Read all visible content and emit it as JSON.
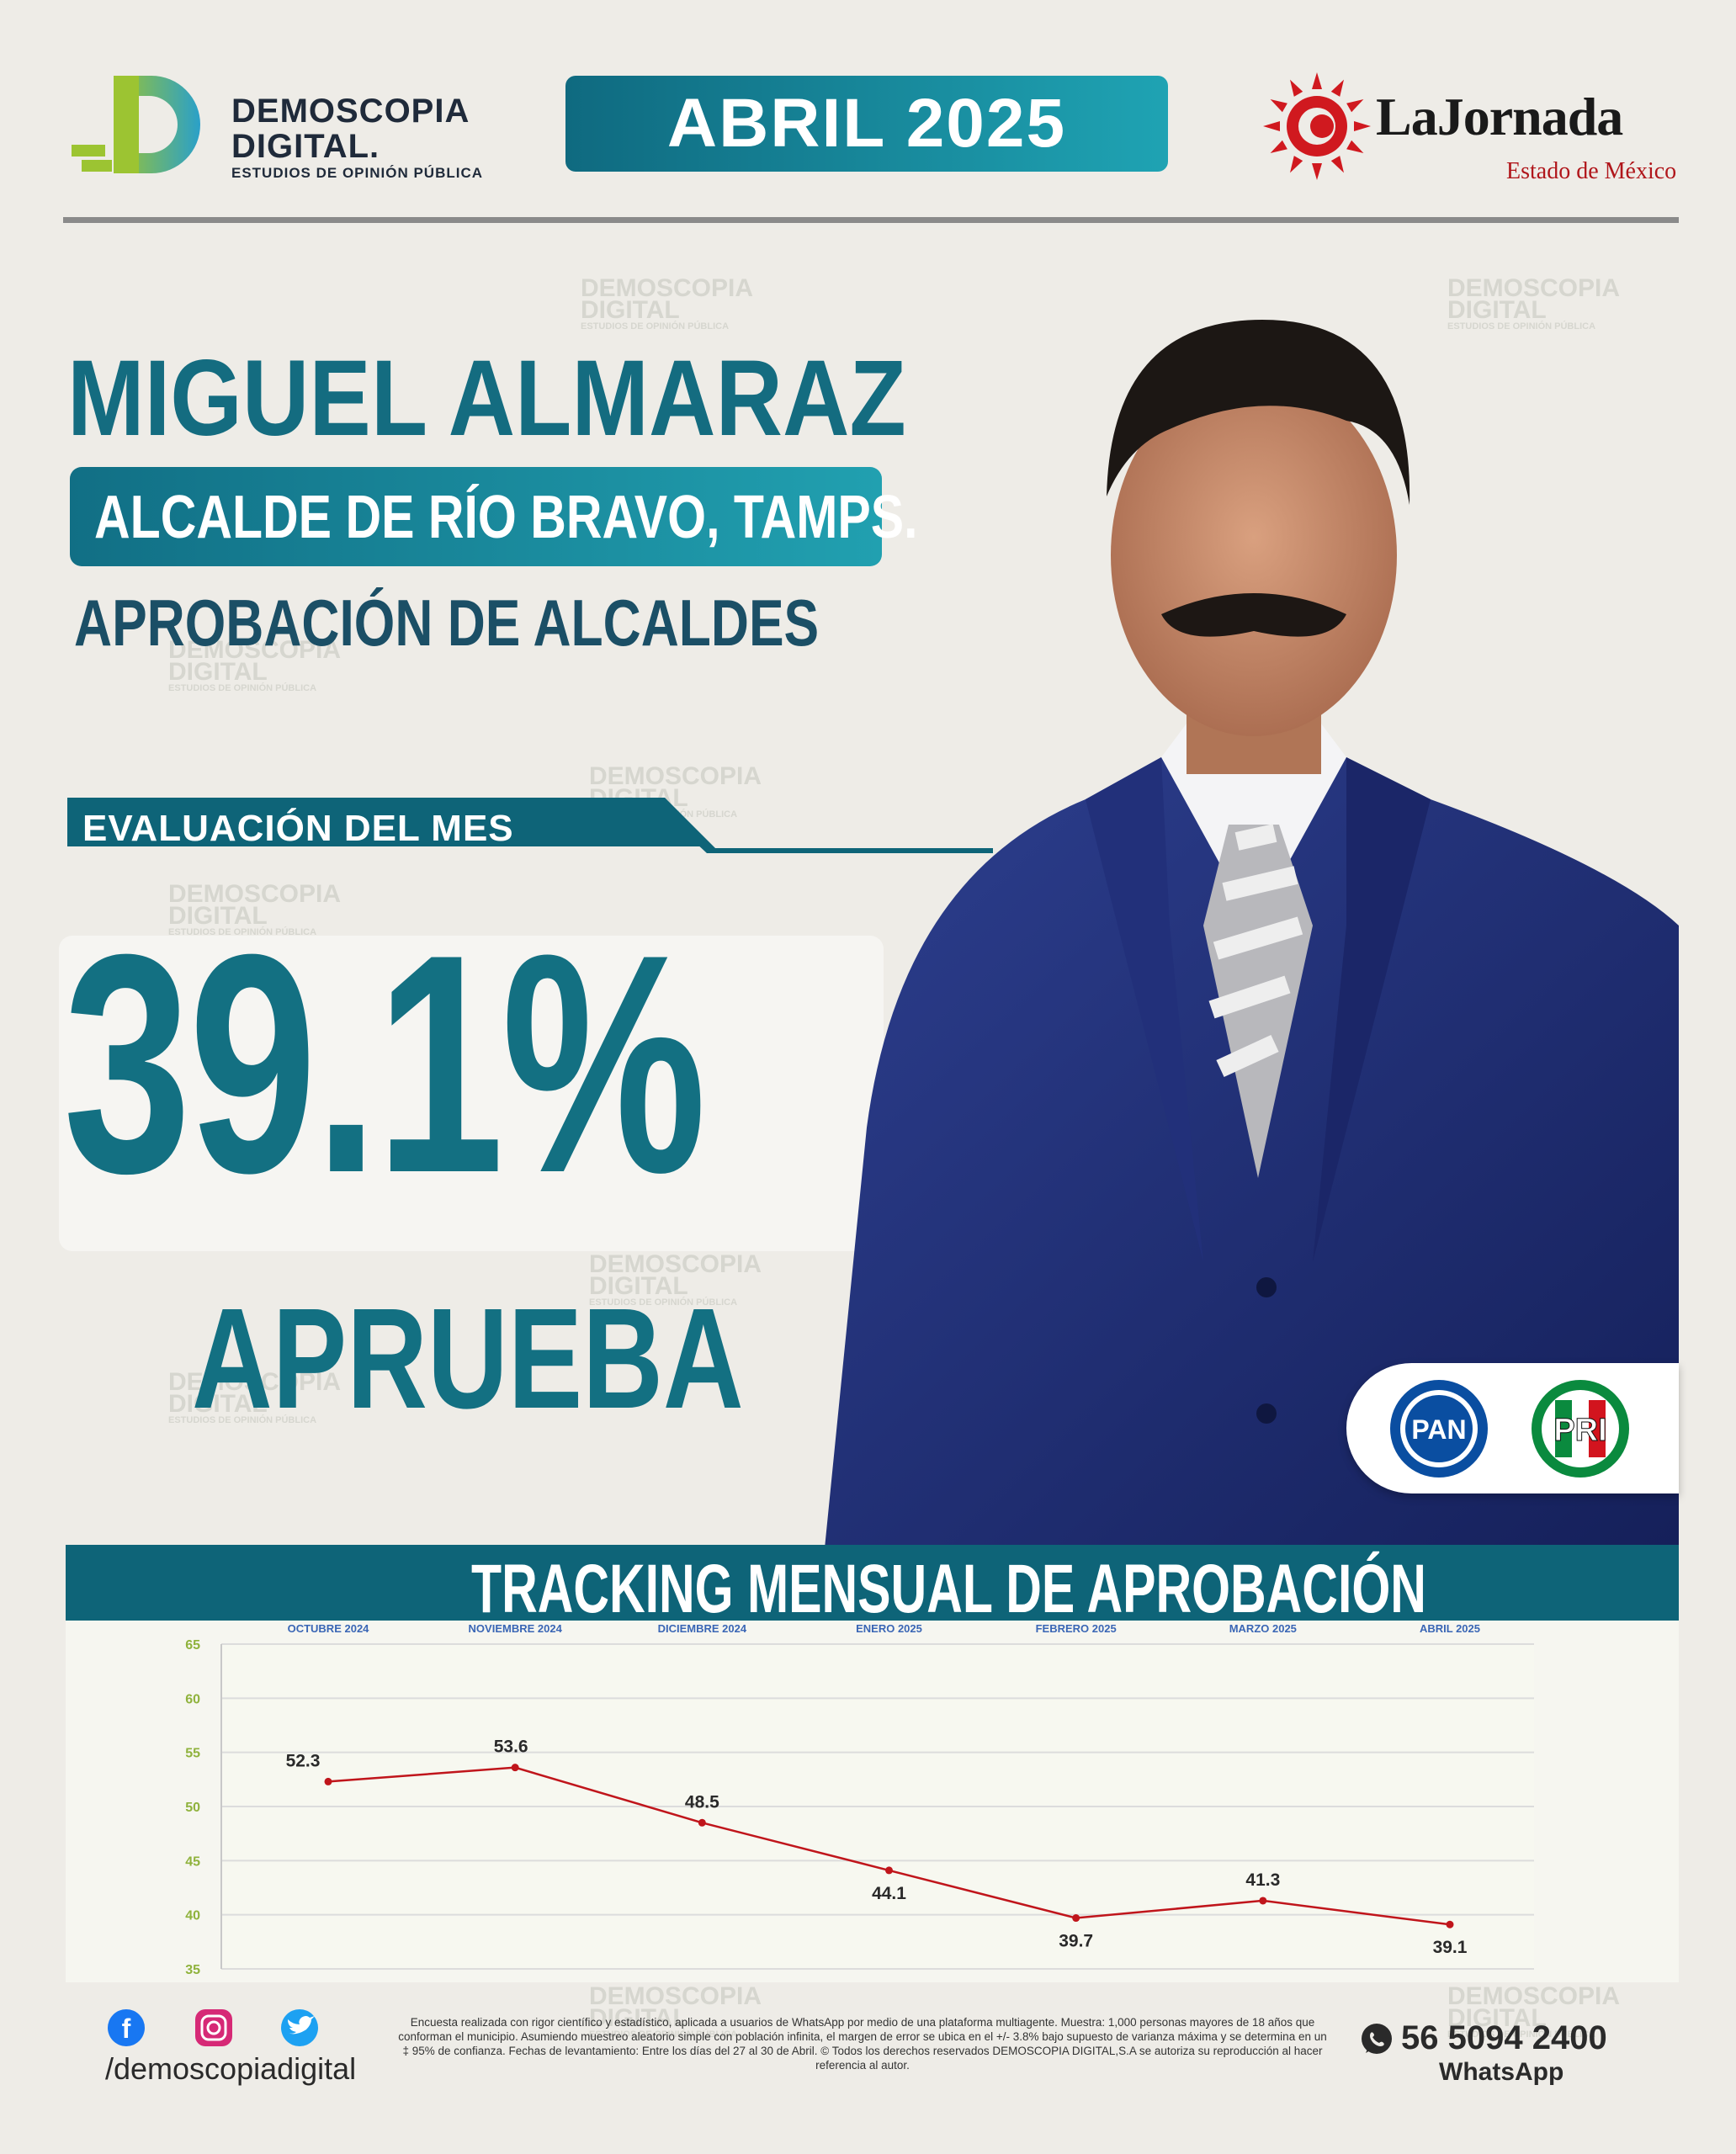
{
  "header": {
    "logo_line1": "DEMOSCOPIA",
    "logo_line2": "DIGITAL.",
    "logo_tagline": "ESTUDIOS DE OPINIÓN PÚBLICA",
    "month": "ABRIL 2025",
    "partner_brand": "LaJornada",
    "partner_sub": "Estado de México"
  },
  "profile": {
    "name": "MIGUEL ALMARAZ",
    "role": "ALCALDE DE RÍO BRAVO, TAMPS.",
    "survey": "APROBACIÓN DE ALCALDES",
    "eval_label": "EVALUACIÓN DEL MES",
    "value": "39.1%",
    "value_label": "APRUEBA",
    "parties": [
      "PAN",
      "PRI"
    ]
  },
  "chart_data": {
    "type": "line",
    "title": "TRACKING MENSUAL DE APROBACIÓN",
    "categories": [
      "OCTUBRE 2024",
      "NOVIEMBRE 2024",
      "DICIEMBRE 2024",
      "ENERO 2025",
      "FEBRERO 2025",
      "MARZO 2025",
      "ABRIL 2025"
    ],
    "series": [
      {
        "values": [
          52.3,
          53.6,
          48.5,
          44.1,
          39.7,
          41.3,
          39.1
        ]
      }
    ],
    "yticks": [
      35,
      40,
      45,
      50,
      55,
      60,
      65
    ],
    "ylim": [
      35,
      65
    ],
    "grid": true,
    "line_color": "#c0151b"
  },
  "footer": {
    "social_handle": "/demoscopiadigital",
    "social_icons": [
      "facebook-icon",
      "instagram-icon",
      "twitter-icon"
    ],
    "disclaimer": "Encuesta realizada con rigor científico y estadístico, aplicada a usuarios de WhatsApp por medio de una plataforma multiagente. Muestra: 1,000 personas mayores de 18 años que conforman el municipio. Asumiendo muestreo aleatorio simple con población infinita, el margen de error se ubica en el +/- 3.8% bajo supuesto de varianza máxima y se determina en un ‡ 95% de confianza. Fechas de levantamiento: Entre los días del 27 al 30 de Abril. © Todos los derechos reservados DEMOSCOPIA DIGITAL,S.A se autoriza su reproducción al hacer referencia al autor.",
    "phone": "56 5094 2400",
    "phone_label": "WhatsApp"
  },
  "colors": {
    "brand_teal": "#137082",
    "banner_dark": "#0e6478",
    "accent_red": "#c0151b"
  }
}
